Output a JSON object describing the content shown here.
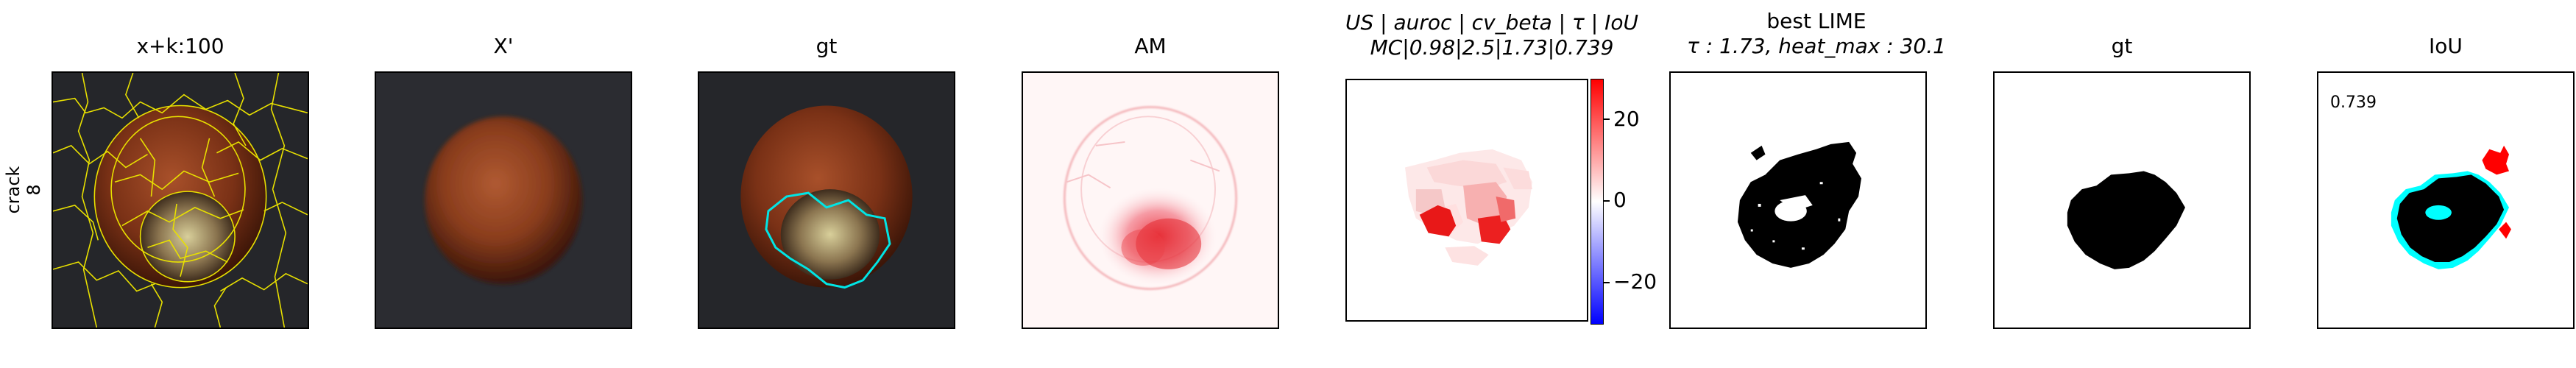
{
  "row_label": {
    "line1": "crack",
    "line2": "8"
  },
  "panels": {
    "p1": {
      "title": "x+k:100"
    },
    "p2": {
      "title": "X'"
    },
    "p3": {
      "title": "gt"
    },
    "p4": {
      "title": "AM"
    },
    "p5": {
      "title_line1": "US | auroc | cv_beta | τ | IoU",
      "title_line2": "MC|0.98|2.5|1.73|0.739"
    },
    "p6": {
      "title_line1": "best LIME",
      "title_line2": "τ : 1.73, heat_max : 30.1"
    },
    "p7": {
      "title": "gt"
    },
    "p8": {
      "title": "IoU",
      "score": "0.739"
    }
  },
  "colorbar": {
    "ticks": [
      "20",
      "0",
      "−20"
    ],
    "colors": {
      "high": "#ff0000",
      "mid": "#ffffff",
      "low": "#0000ff"
    }
  },
  "colors": {
    "segment_boundary": "#e8e000",
    "gt_contour": "#00e5e5",
    "iou_false_negative": "#00ffff",
    "iou_false_positive": "#ff0000"
  }
}
